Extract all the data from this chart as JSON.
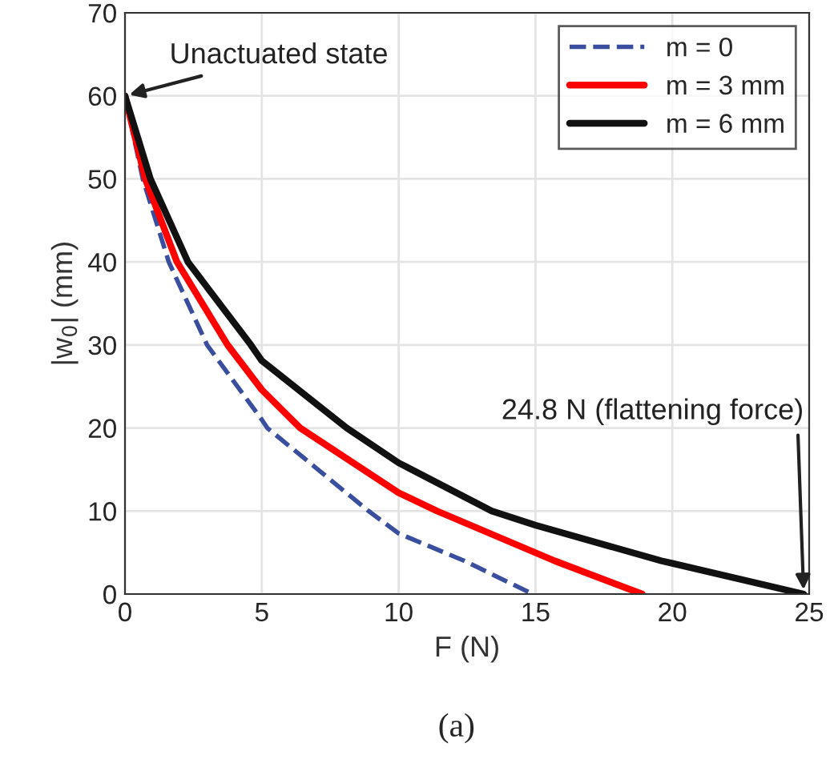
{
  "chart_data": {
    "type": "line",
    "xlabel": "F (N)",
    "ylabel": "|w$_{0}$| (mm)",
    "xlim": [
      0,
      25
    ],
    "ylim": [
      0,
      70
    ],
    "xticks": [
      0,
      5,
      10,
      15,
      20,
      25
    ],
    "yticks": [
      0,
      10,
      20,
      30,
      40,
      50,
      60,
      70
    ],
    "grid": true,
    "legend": "top right",
    "series": [
      {
        "name": "m = 0",
        "color": "#3a4ea0",
        "line_style": "dashed",
        "x": [
          0,
          0.65,
          1.6,
          3.0,
          5.0,
          5.2,
          8.9,
          10,
          12.4,
          14.9
        ],
        "values": [
          60,
          50,
          40,
          30,
          21,
          20,
          10,
          7.3,
          4,
          0
        ]
      },
      {
        "name": "m = 3 mm",
        "color": "#ff0000",
        "line_style": "solid",
        "x": [
          0,
          0.74,
          1.9,
          3.75,
          5,
          6.4,
          10,
          11.4,
          15.7,
          18.9
        ],
        "values": [
          60,
          50,
          40,
          30,
          24.6,
          20,
          12.2,
          10,
          4,
          0
        ]
      },
      {
        "name": "m = 6 mm",
        "color": "#111111",
        "line_style": "solid",
        "x": [
          0,
          0.93,
          2.3,
          4.6,
          5,
          8.1,
          10,
          13.4,
          15,
          19.6,
          20,
          24.8
        ],
        "values": [
          60,
          50,
          40,
          30,
          28.1,
          20,
          15.8,
          10,
          8.3,
          4,
          3.7,
          0
        ]
      }
    ],
    "annotations": [
      {
        "text": "Unactuated state",
        "x": 0,
        "y": 60
      },
      {
        "text": "24.8 N (flattening force)",
        "x": 24.8,
        "y": 0
      },
      "(a)"
    ]
  }
}
